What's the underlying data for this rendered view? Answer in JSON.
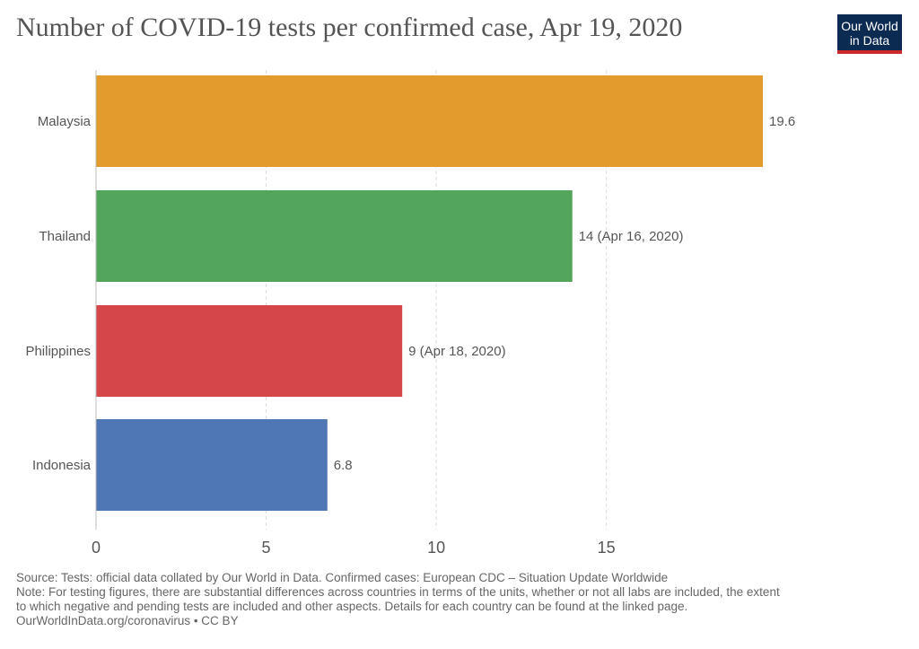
{
  "title": "Number of COVID-19 tests per confirmed case, Apr 19, 2020",
  "logo": {
    "line1": "Our World",
    "line2": "in Data"
  },
  "colors": {
    "logo_bg": "#0c2b52",
    "logo_accent": "#cc2a2a",
    "label_text": "#555555",
    "grid": "#dddddd"
  },
  "chart_data": {
    "type": "bar",
    "orientation": "horizontal",
    "categories": [
      "Malaysia",
      "Thailand",
      "Philippines",
      "Indonesia"
    ],
    "values": [
      19.6,
      14,
      9,
      6.8
    ],
    "value_labels": [
      "19.6",
      "14 (Apr 16, 2020)",
      "9 (Apr 18, 2020)",
      "6.8"
    ],
    "bar_colors": [
      "#e39b2e",
      "#52a55a",
      "#d44648",
      "#4f76b5"
    ],
    "x_ticks": [
      0,
      5,
      10,
      15
    ],
    "xlim": [
      0,
      19.6
    ],
    "grid": "vertical-dashed",
    "legend": "none"
  },
  "footer": {
    "source": "Source: Tests: official data collated by Our World in Data. Confirmed cases: European CDC – Situation Update Worldwide",
    "note_line1": "Note: For testing figures, there are substantial differences across countries in terms of the units, whether or not all labs are included, the extent",
    "note_line2": "to which negative and pending tests are included and other aspects. Details for each country can be found at the linked page.",
    "credit": "OurWorldInData.org/coronavirus • CC BY"
  }
}
